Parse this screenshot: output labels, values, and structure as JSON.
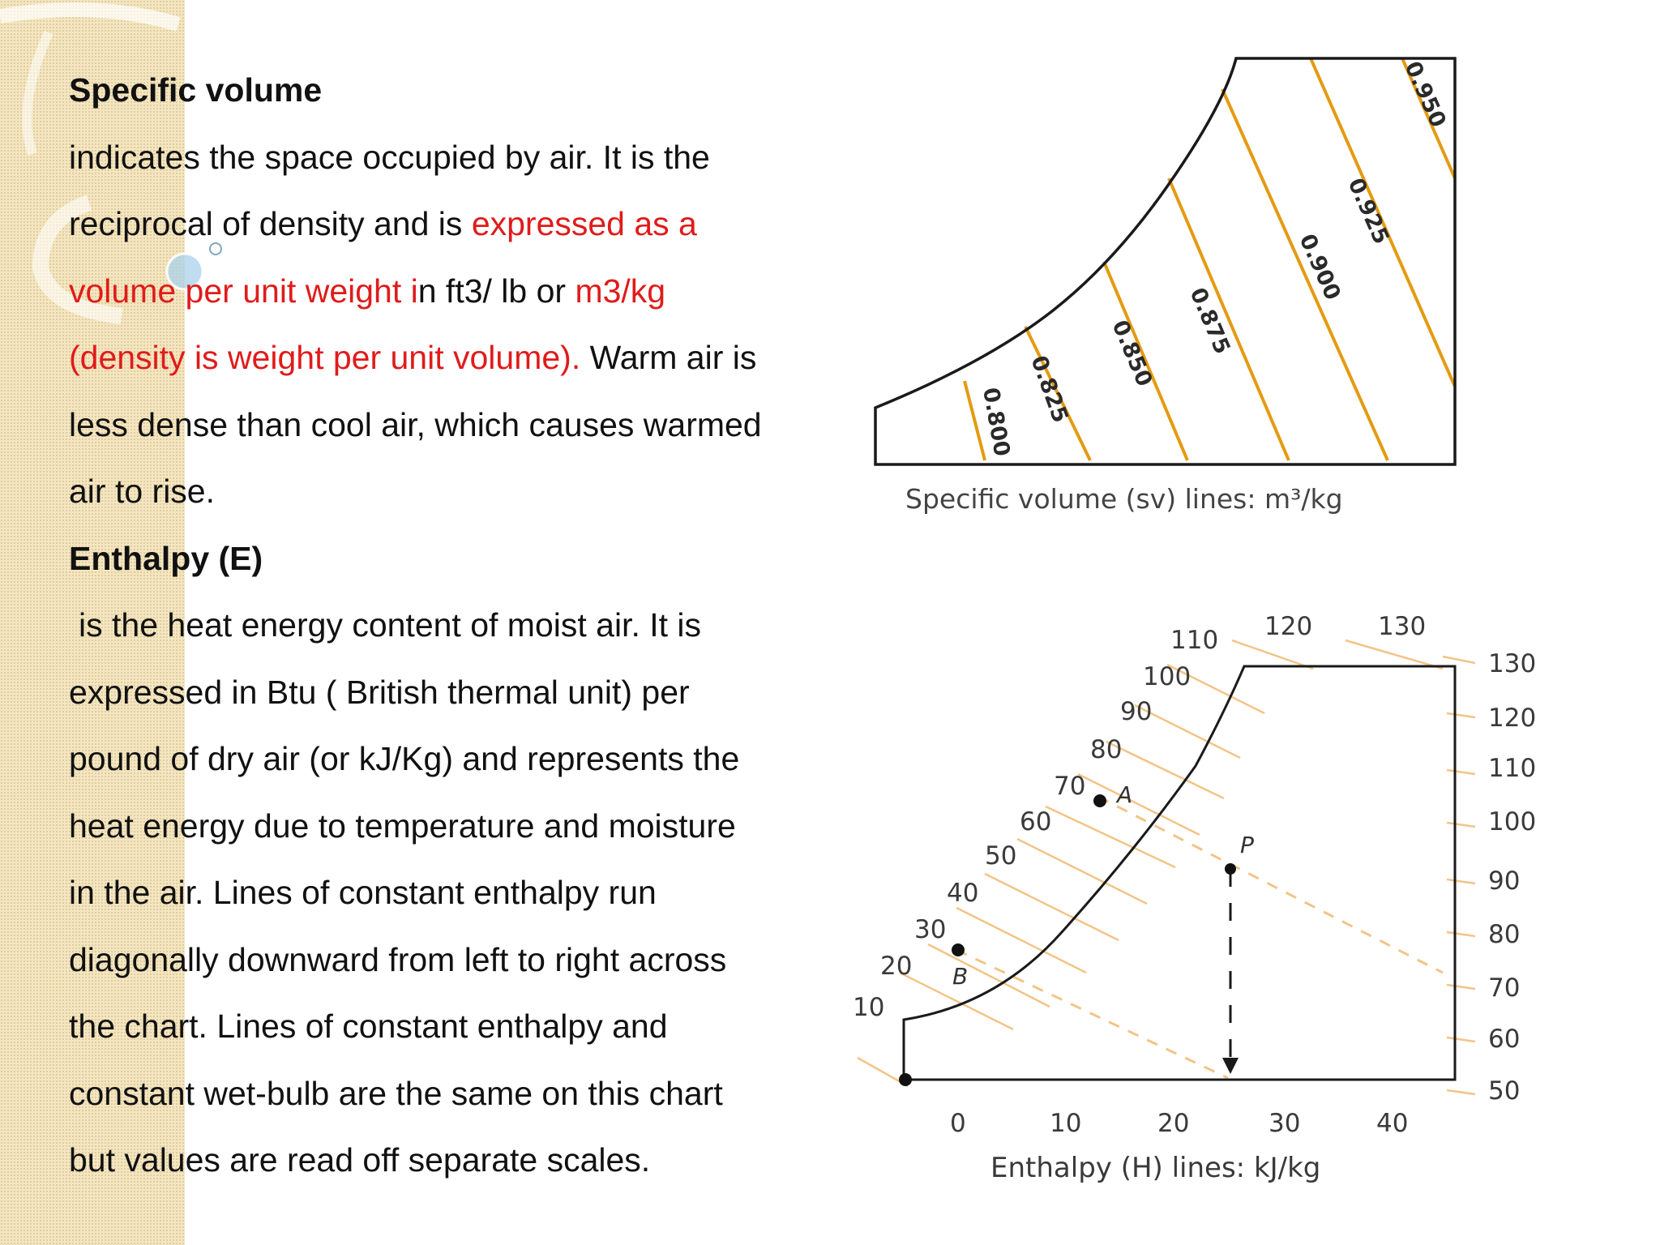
{
  "colors": {
    "accent_red": "#e01b1b",
    "sv_line_orange": "#e49b12",
    "enthalpy_line_orange": "#f3c487",
    "side_band": "#f4e6c0"
  },
  "specific_volume": {
    "heading": "Specific volume",
    "line1": "indicates the space occupied by air. It is the",
    "line2_a": "reciprocal of density and is ",
    "line2_red": "expressed as a",
    "line3_red_a": "volume per unit weight i",
    "line3_b": "n ft3/ lb or ",
    "line3_red_c": "m3/kg",
    "line4_red": "(density is weight per unit volume).",
    "line4_b": " Warm air is",
    "line5": "less dense than cool air, which causes warmed",
    "line6": "air to rise."
  },
  "enthalpy": {
    "heading": "Enthalpy (E)",
    "line1": "is the heat energy content of moist air. It is",
    "line2": "expressed in Btu ( British thermal unit) per",
    "line3": "pound of dry air (or kJ/Kg) and represents the",
    "line4": "heat energy due to temperature and moisture",
    "line5": "in the air. Lines of constant enthalpy run",
    "line6": "diagonally downward from left to right across",
    "line7": "the chart. Lines of constant enthalpy and",
    "line8": "constant wet-bulb are the same on this chart",
    "line9": "but values are read off separate scales."
  },
  "sv_diagram": {
    "caption": "Specific volume (sv) lines: m³/kg",
    "line_labels": [
      "0.800",
      "0.825",
      "0.850",
      "0.875",
      "0.900",
      "0.925",
      "0.950"
    ]
  },
  "enthalpy_diagram": {
    "caption": "Enthalpy (H) lines: kJ/kg",
    "saturation_labels": [
      "10",
      "20",
      "30",
      "40",
      "50",
      "60",
      "70",
      "80",
      "90",
      "100",
      "110"
    ],
    "top_labels": [
      "120",
      "130"
    ],
    "right_labels": [
      "130",
      "120",
      "110",
      "100",
      "90",
      "80",
      "70",
      "60",
      "50"
    ],
    "bottom_labels": [
      "0",
      "10",
      "20",
      "30",
      "40"
    ],
    "point_labels": {
      "a": "A",
      "b": "B",
      "p": "P"
    }
  }
}
